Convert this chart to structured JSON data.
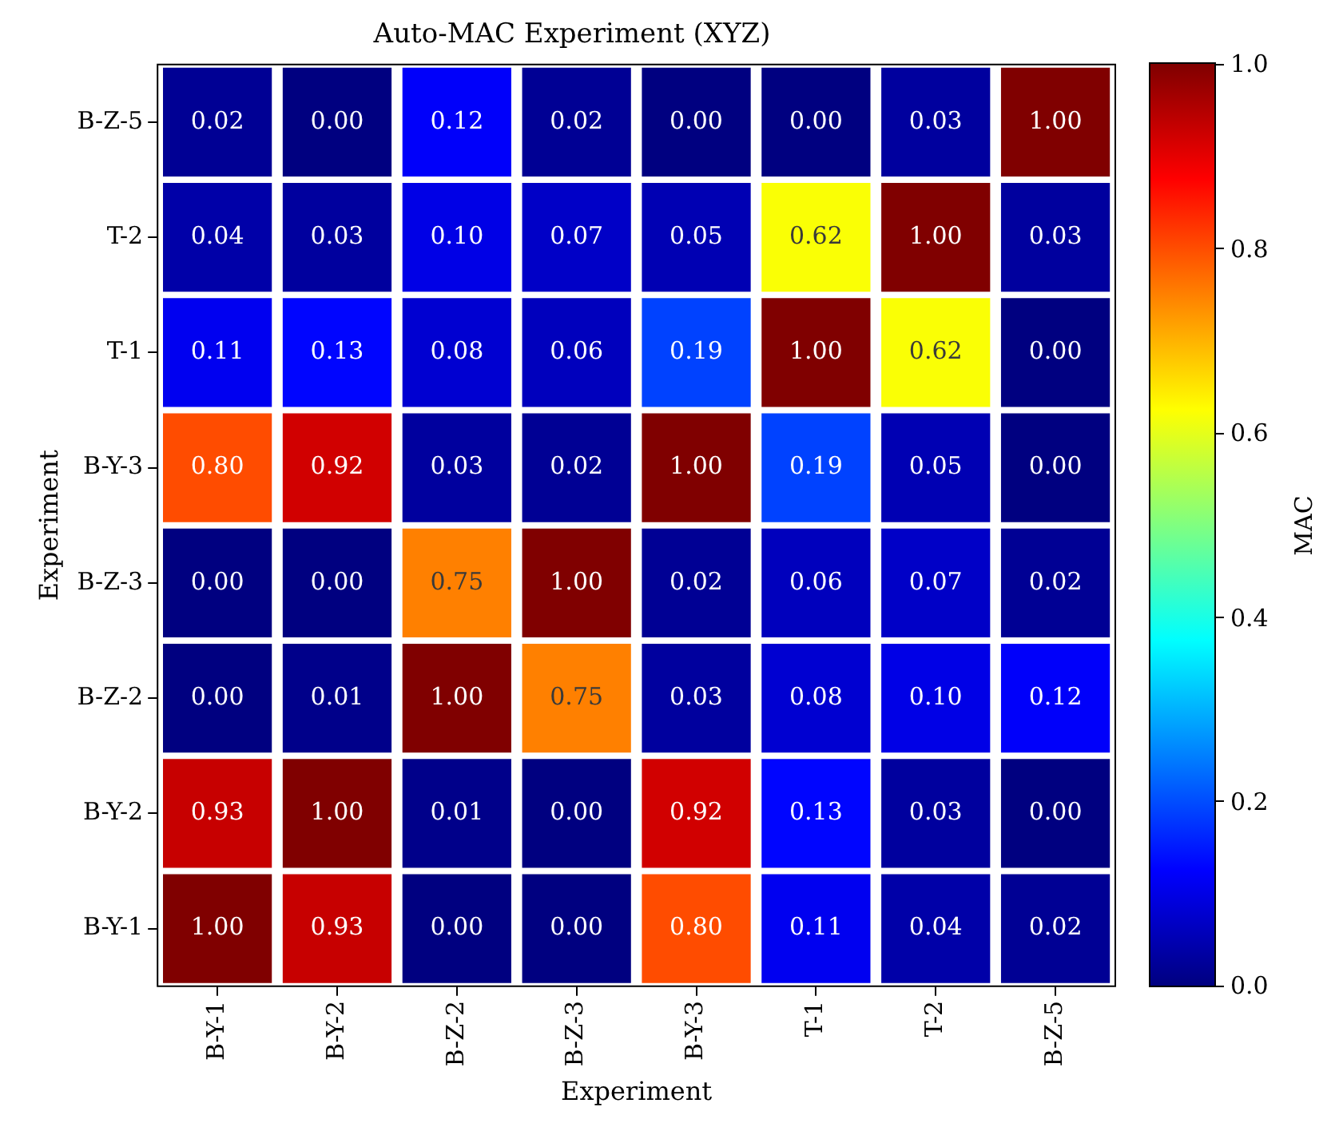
{
  "chart_data": {
    "type": "heatmap",
    "title": "Auto-MAC Experiment (XYZ)",
    "xlabel": "Experiment",
    "ylabel": "Experiment",
    "clabel": "MAC",
    "categories": [
      "B-Y-1",
      "B-Y-2",
      "B-Z-2",
      "B-Z-3",
      "B-Y-3",
      "T-1",
      "T-2",
      "B-Z-5"
    ],
    "y_categories": [
      "B-Z-5",
      "T-2",
      "T-1",
      "B-Y-3",
      "B-Z-3",
      "B-Z-2",
      "B-Y-2",
      "B-Y-1"
    ],
    "cells": [
      [
        0.02,
        0.0,
        0.12,
        0.02,
        0.0,
        0.0,
        0.03,
        1.0
      ],
      [
        0.04,
        0.03,
        0.1,
        0.07,
        0.05,
        0.62,
        1.0,
        0.03
      ],
      [
        0.11,
        0.13,
        0.08,
        0.06,
        0.19,
        1.0,
        0.62,
        0.0
      ],
      [
        0.8,
        0.92,
        0.03,
        0.02,
        1.0,
        0.19,
        0.05,
        0.0
      ],
      [
        0.0,
        0.0,
        0.75,
        1.0,
        0.02,
        0.06,
        0.07,
        0.02
      ],
      [
        0.0,
        0.01,
        1.0,
        0.75,
        0.03,
        0.08,
        0.1,
        0.12
      ],
      [
        0.93,
        1.0,
        0.01,
        0.0,
        0.92,
        0.13,
        0.03,
        0.0
      ],
      [
        1.0,
        0.93,
        0.0,
        0.0,
        0.8,
        0.11,
        0.04,
        0.02
      ]
    ],
    "cell_labels": [
      [
        "0.02",
        "0.00",
        "0.12",
        "0.02",
        "0.00",
        "0.00",
        "0.03",
        "1.00"
      ],
      [
        "0.04",
        "0.03",
        "0.10",
        "0.07",
        "0.05",
        "0.62",
        "1.00",
        "0.03"
      ],
      [
        "0.11",
        "0.13",
        "0.08",
        "0.06",
        "0.19",
        "1.00",
        "0.62",
        "0.00"
      ],
      [
        "0.80",
        "0.92",
        "0.03",
        "0.02",
        "1.00",
        "0.19",
        "0.05",
        "0.00"
      ],
      [
        "0.00",
        "0.00",
        "0.75",
        "1.00",
        "0.02",
        "0.06",
        "0.07",
        "0.02"
      ],
      [
        "0.00",
        "0.01",
        "1.00",
        "0.75",
        "0.03",
        "0.08",
        "0.10",
        "0.12"
      ],
      [
        "0.93",
        "1.00",
        "0.01",
        "0.00",
        "0.92",
        "0.13",
        "0.03",
        "0.00"
      ],
      [
        "1.00",
        "0.93",
        "0.00",
        "0.00",
        "0.80",
        "0.11",
        "0.04",
        "0.02"
      ]
    ],
    "clim": [
      0,
      1
    ],
    "cticks": [
      {
        "value": 0,
        "label": "0.0"
      },
      {
        "value": 0.2,
        "label": "0.2"
      },
      {
        "value": 0.4,
        "label": "0.4"
      },
      {
        "value": 0.6,
        "label": "0.6"
      },
      {
        "value": 0.8,
        "label": "0.8"
      },
      {
        "value": 1,
        "label": "1.0"
      }
    ],
    "data_labels": true
  }
}
